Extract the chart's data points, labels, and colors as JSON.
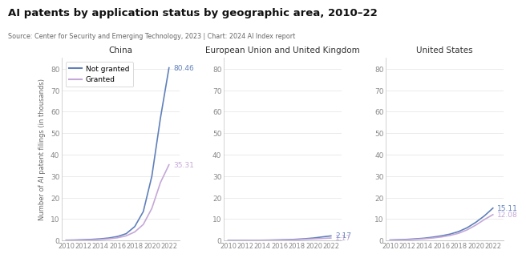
{
  "title": "AI patents by application status by geographic area, 2010–22",
  "source": "Source: Center for Security and Emerging Technology, 2023 | Chart: 2024 AI Index report",
  "ylabel": "Number of AI patent filings (in thousands)",
  "years": [
    2010,
    2011,
    2012,
    2013,
    2014,
    2015,
    2016,
    2017,
    2018,
    2019,
    2020,
    2021,
    2022
  ],
  "panels": [
    {
      "title": "China",
      "not_granted": [
        0.18,
        0.25,
        0.38,
        0.55,
        0.8,
        1.2,
        1.9,
        3.2,
        6.5,
        13.5,
        30.0,
        57.0,
        80.46
      ],
      "granted": [
        0.1,
        0.15,
        0.22,
        0.32,
        0.5,
        0.8,
        1.3,
        2.2,
        4.0,
        7.5,
        15.0,
        27.0,
        35.31
      ],
      "ylim": [
        0,
        85
      ],
      "yticks": [
        0,
        10,
        20,
        30,
        40,
        50,
        60,
        70,
        80
      ],
      "label_not_granted": "80.46",
      "label_granted": "35.31"
    },
    {
      "title": "European Union and United Kingdom",
      "not_granted": [
        0.05,
        0.07,
        0.09,
        0.12,
        0.16,
        0.22,
        0.3,
        0.42,
        0.6,
        0.85,
        1.2,
        1.7,
        2.17
      ],
      "granted": [
        0.04,
        0.05,
        0.07,
        0.09,
        0.12,
        0.16,
        0.22,
        0.3,
        0.42,
        0.6,
        0.8,
        1.0,
        1.17
      ],
      "ylim": [
        0,
        85
      ],
      "yticks": [
        0,
        10,
        20,
        30,
        40,
        50,
        60,
        70,
        80
      ],
      "label_not_granted": "2.17",
      "label_granted": "1.17"
    },
    {
      "title": "United States",
      "not_granted": [
        0.25,
        0.38,
        0.55,
        0.8,
        1.1,
        1.6,
        2.2,
        3.0,
        4.2,
        6.0,
        8.5,
        11.5,
        15.11
      ],
      "granted": [
        0.18,
        0.28,
        0.4,
        0.58,
        0.85,
        1.2,
        1.7,
        2.4,
        3.4,
        5.0,
        7.2,
        9.8,
        12.08
      ],
      "ylim": [
        0,
        85
      ],
      "yticks": [
        0,
        10,
        20,
        30,
        40,
        50,
        60,
        70,
        80
      ],
      "label_not_granted": "15.11",
      "label_granted": "12.08"
    }
  ],
  "color_not_granted": "#6080bb",
  "color_granted": "#c4a8d8",
  "legend_labels": [
    "Not granted",
    "Granted"
  ],
  "background_color": "#ffffff",
  "grid_color": "#e8e8e8",
  "divider_color": "#cccccc",
  "title_color": "#111111",
  "source_color": "#666666",
  "tick_color": "#888888",
  "panel_title_color": "#333333"
}
